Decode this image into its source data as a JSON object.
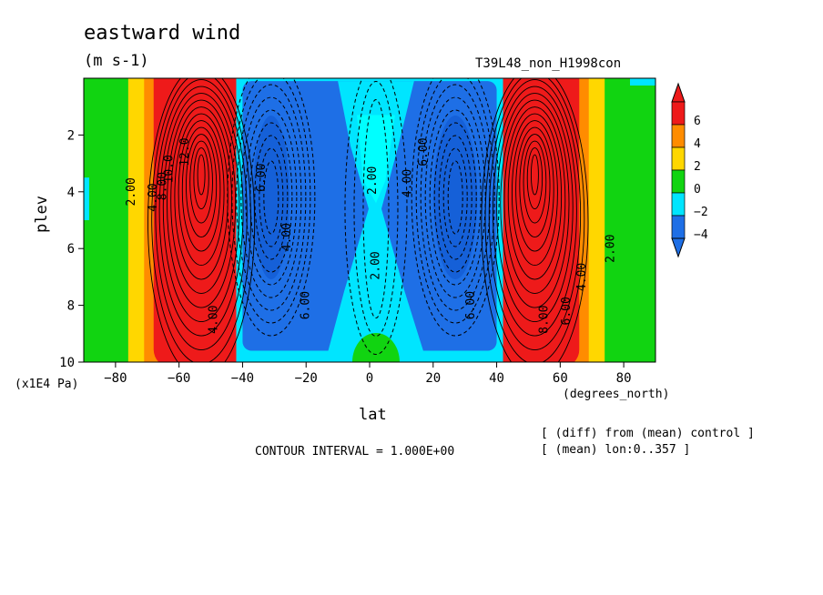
{
  "chart_data": {
    "type": "heatmap",
    "title": "eastward wind",
    "units": "(m s-1)",
    "experiment": "T39L48_non_H1998con",
    "xlabel": "lat",
    "ylabel": "plev",
    "x_unit_label": "(degrees_north)",
    "y_unit_label": "(x1E4 Pa)",
    "xlim": [
      -90,
      90
    ],
    "ylim": [
      10,
      0
    ],
    "x_ticks": [
      -80,
      -60,
      -40,
      -20,
      0,
      20,
      40,
      60,
      80
    ],
    "y_ticks": [
      2,
      4,
      6,
      8,
      10
    ],
    "contour_interval_text": "CONTOUR INTERVAL = 1.000E+00",
    "notes": [
      "[ (diff) from (mean) control ]",
      "[ (mean) lon:0..357 ]"
    ],
    "colorbar": {
      "labels": [
        "6",
        "4",
        "2",
        "0",
        "-2",
        "-4"
      ],
      "levels": [
        -4,
        -2,
        0,
        2,
        4,
        6
      ],
      "colors": [
        "#1e6fe6",
        "#00e5ff",
        "#11d411",
        "#ffd700",
        "#ff8c00",
        "#ee1a1a",
        "#ffd700"
      ]
    },
    "features": [
      {
        "kind": "westerly_jet",
        "lat": -52,
        "plev": 2.7,
        "peak_ms": 12
      },
      {
        "kind": "westerly_jet",
        "lat": 51,
        "plev": 3.0,
        "peak_ms": 12
      },
      {
        "kind": "easterly_band",
        "lat": -30,
        "plev": 4.5,
        "value_ms": -6
      },
      {
        "kind": "easterly_band",
        "lat": 28,
        "plev": 4.5,
        "value_ms": -6
      },
      {
        "kind": "weak_easterly_core",
        "lat": 2,
        "plev": 4.0,
        "value_ms": -2
      }
    ],
    "contour_labels": [
      {
        "text": "12.0",
        "lat": -57,
        "plev": 2.6
      },
      {
        "text": "10.0",
        "lat": -62,
        "plev": 3.2
      },
      {
        "text": "8.00",
        "lat": -64,
        "plev": 3.8
      },
      {
        "text": "4.00",
        "lat": -67,
        "plev": 4.2
      },
      {
        "text": "2.00",
        "lat": -74,
        "plev": 4.0
      },
      {
        "text": "4.00",
        "lat": -48,
        "plev": 8.5
      },
      {
        "text": "4.00",
        "lat": -25,
        "plev": 5.6
      },
      {
        "text": "6.00",
        "lat": -19,
        "plev": 8.0
      },
      {
        "text": "6.00",
        "lat": -33,
        "plev": 3.5
      },
      {
        "text": "2.00",
        "lat": 2,
        "plev": 3.6
      },
      {
        "text": "2.00",
        "lat": 3,
        "plev": 6.6
      },
      {
        "text": "4.00",
        "lat": 13,
        "plev": 3.7
      },
      {
        "text": "6.00",
        "lat": 18,
        "plev": 2.6
      },
      {
        "text": "6.00",
        "lat": 33,
        "plev": 8.0
      },
      {
        "text": "8.00",
        "lat": 56,
        "plev": 8.5
      },
      {
        "text": "6.00",
        "lat": 63,
        "plev": 8.2
      },
      {
        "text": "4.00",
        "lat": 68,
        "plev": 7.0
      },
      {
        "text": "2.00",
        "lat": 77,
        "plev": 6.0
      }
    ]
  }
}
